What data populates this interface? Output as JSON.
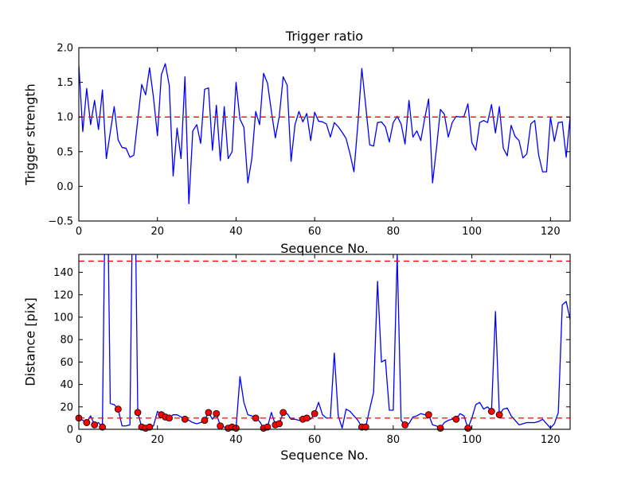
{
  "chart_data": [
    {
      "type": "line",
      "name": "trigger-ratio",
      "title": "Trigger ratio",
      "xlabel": "Sequence No.",
      "ylabel": "Trigger strength",
      "xlim": [
        0,
        125
      ],
      "ylim": [
        -0.5,
        2.0
      ],
      "grid": false,
      "legend": "none",
      "x_start": 0,
      "x_step": 1,
      "xticks": [
        {
          "v": 0,
          "label": "0"
        },
        {
          "v": 20,
          "label": "20"
        },
        {
          "v": 40,
          "label": "40"
        },
        {
          "v": 60,
          "label": "60"
        },
        {
          "v": 80,
          "label": "80"
        },
        {
          "v": 100,
          "label": "100"
        },
        {
          "v": 120,
          "label": "120"
        }
      ],
      "yticks": [
        {
          "v": 2.0,
          "label": "2.0"
        },
        {
          "v": 1.5,
          "label": "1.5"
        },
        {
          "v": 1.0,
          "label": "1.0"
        },
        {
          "v": 0.5,
          "label": "0.5"
        },
        {
          "v": 0.0,
          "label": "0.0"
        },
        {
          "v": -0.5,
          "label": "−0.5"
        }
      ],
      "hlines": [
        {
          "y": 1.0,
          "color": "#ff0000",
          "style": "dashed"
        }
      ],
      "series": [
        {
          "name": "trigger-strength",
          "color": "#0000ff",
          "values": [
            1.75,
            0.79,
            1.41,
            0.89,
            1.24,
            0.82,
            1.39,
            0.4,
            0.78,
            1.15,
            0.67,
            0.56,
            0.55,
            0.42,
            0.45,
            0.96,
            1.47,
            1.32,
            1.71,
            1.28,
            0.73,
            1.61,
            1.77,
            1.46,
            0.15,
            0.84,
            0.4,
            1.58,
            -0.25,
            0.8,
            0.89,
            0.62,
            1.4,
            1.42,
            0.52,
            1.17,
            0.37,
            1.15,
            0.4,
            0.5,
            1.5,
            0.97,
            0.85,
            0.05,
            0.39,
            1.08,
            0.89,
            1.63,
            1.49,
            1.08,
            0.7,
            1.01,
            1.58,
            1.46,
            0.36,
            0.89,
            1.08,
            0.93,
            1.05,
            0.66,
            1.07,
            0.94,
            0.93,
            0.9,
            0.71,
            0.92,
            0.86,
            0.78,
            0.69,
            0.47,
            0.21,
            0.9,
            1.7,
            1.16,
            0.6,
            0.58,
            0.92,
            0.93,
            0.86,
            0.64,
            0.92,
            1.01,
            0.9,
            0.61,
            1.24,
            0.71,
            0.8,
            0.66,
            0.98,
            1.26,
            0.05,
            0.55,
            1.11,
            1.04,
            0.71,
            0.92,
            1.01,
            1.0,
            1.01,
            1.19,
            0.63,
            0.52,
            0.92,
            0.95,
            0.92,
            1.18,
            0.77,
            1.15,
            0.55,
            0.44,
            0.88,
            0.72,
            0.66,
            0.41,
            0.47,
            0.9,
            0.95,
            0.45,
            0.21,
            0.21,
            1.0,
            0.65,
            0.92,
            0.93,
            0.42,
            1.0
          ]
        }
      ]
    },
    {
      "type": "line",
      "name": "distance",
      "title": "",
      "xlabel": "Sequence No.",
      "ylabel": "Distance [pix]",
      "xlim": [
        0,
        125
      ],
      "ylim": [
        0,
        156
      ],
      "grid": false,
      "legend": "none",
      "x_start": 0,
      "x_step": 1,
      "xticks": [
        {
          "v": 0,
          "label": "0"
        },
        {
          "v": 20,
          "label": "20"
        },
        {
          "v": 40,
          "label": "40"
        },
        {
          "v": 60,
          "label": "60"
        },
        {
          "v": 80,
          "label": "80"
        },
        {
          "v": 100,
          "label": "100"
        },
        {
          "v": 120,
          "label": "120"
        }
      ],
      "yticks": [
        {
          "v": 0,
          "label": "0"
        },
        {
          "v": 20,
          "label": "20"
        },
        {
          "v": 40,
          "label": "40"
        },
        {
          "v": 60,
          "label": "60"
        },
        {
          "v": 80,
          "label": "80"
        },
        {
          "v": 100,
          "label": "100"
        },
        {
          "v": 120,
          "label": "120"
        },
        {
          "v": 140,
          "label": "140"
        }
      ],
      "hlines": [
        {
          "y": 150,
          "color": "#ff0000",
          "style": "dashed"
        },
        {
          "y": 10,
          "color": "#ff0000",
          "style": "dashed"
        }
      ],
      "series": [
        {
          "name": "distance-pix",
          "color": "#0000ff",
          "values": [
            10,
            8,
            6,
            12,
            4,
            6,
            2,
            300,
            23,
            22,
            18,
            3,
            3,
            4,
            300,
            15,
            2,
            1,
            2,
            3,
            16,
            13,
            11,
            10,
            13,
            13,
            11,
            9,
            8,
            6,
            5,
            6,
            8,
            15,
            9,
            14,
            3,
            2,
            1,
            2,
            1,
            47,
            24,
            13,
            12,
            10,
            7,
            1,
            2,
            15,
            4,
            5,
            15,
            14,
            9,
            9,
            8,
            9,
            10,
            9,
            14,
            24,
            13,
            10,
            10,
            68,
            12,
            1,
            18,
            16,
            12,
            8,
            2,
            2,
            18,
            33,
            132,
            60,
            62,
            17,
            17,
            156,
            8,
            4,
            5,
            11,
            12,
            14,
            13,
            13,
            4,
            3,
            1,
            6,
            8,
            9,
            9,
            14,
            12,
            1,
            10,
            22,
            24,
            18,
            20,
            16,
            105,
            13,
            18,
            19,
            12,
            8,
            4,
            5,
            6,
            6,
            6,
            7,
            9,
            5,
            1,
            5,
            15,
            111,
            114,
            98
          ]
        }
      ],
      "markers": {
        "name": "triggered-points",
        "shape": "circle",
        "color": "#ff0000",
        "edge": "#000000",
        "x": [
          0,
          2,
          4,
          6,
          10,
          15,
          16,
          17,
          18,
          21,
          22,
          23,
          27,
          32,
          33,
          35,
          36,
          38,
          39,
          40,
          45,
          47,
          48,
          50,
          51,
          52,
          57,
          58,
          60,
          72,
          73,
          83,
          89,
          92,
          96,
          99,
          105,
          107
        ],
        "y": [
          10,
          6,
          4,
          2,
          18,
          15,
          2,
          1,
          2,
          13,
          11,
          10,
          9,
          8,
          15,
          14,
          3,
          1,
          2,
          1,
          10,
          1,
          2,
          4,
          5,
          15,
          9,
          10,
          14,
          2,
          2,
          4,
          13,
          1,
          9,
          1,
          16,
          13
        ]
      }
    }
  ]
}
